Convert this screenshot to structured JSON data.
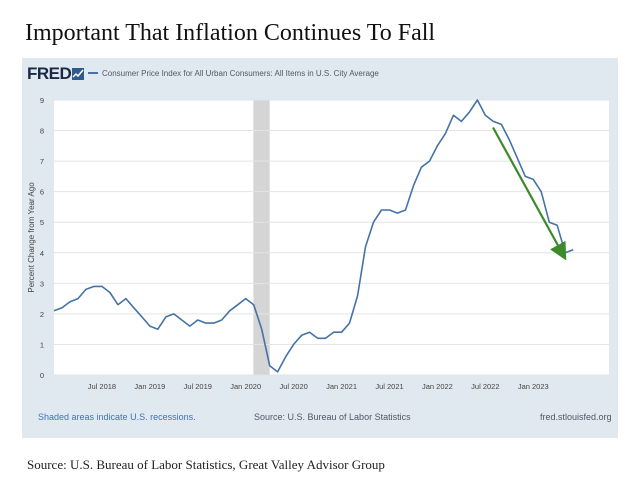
{
  "slide": {
    "title": "Important That Inflation Continues To Fall",
    "source": "Source: U.S. Bureau of Labor Statistics, Great Valley Advisor Group"
  },
  "fred": {
    "logo": "FRED",
    "legend": "Consumer Price Index for All Urban Consumers: All Items in U.S. City Average",
    "shaded_note": "Shaded areas indicate U.S. recessions.",
    "source_note": "Source: U.S. Bureau of Labor Statistics",
    "site": "fred.stlouisfed.org"
  },
  "colors": {
    "line": "#4572a7",
    "panel": "#e1e9f0",
    "recession": "#d5d5d5",
    "arrow": "#3d8a2a"
  },
  "chart_data": {
    "type": "line",
    "title": "Consumer Price Index for All Urban Consumers: All Items in U.S. City Average",
    "xlabel": "",
    "ylabel": "Percent Change from Year Ago",
    "ylim": [
      0,
      9
    ],
    "xlim": [
      2018.0,
      2023.79
    ],
    "yticks": [
      "0",
      "1",
      "2",
      "3",
      "4",
      "5",
      "6",
      "7",
      "8",
      "9"
    ],
    "xticks": [
      {
        "t": 2018.5,
        "label": "Jul 2018"
      },
      {
        "t": 2019.0,
        "label": "Jan 2019"
      },
      {
        "t": 2019.5,
        "label": "Jul 2019"
      },
      {
        "t": 2020.0,
        "label": "Jan 2020"
      },
      {
        "t": 2020.5,
        "label": "Jul 2020"
      },
      {
        "t": 2021.0,
        "label": "Jan 2021"
      },
      {
        "t": 2021.5,
        "label": "Jul 2021"
      },
      {
        "t": 2022.0,
        "label": "Jan 2022"
      },
      {
        "t": 2022.5,
        "label": "Jul 2022"
      },
      {
        "t": 2023.0,
        "label": "Jan 2023"
      }
    ],
    "recessions": [
      {
        "start": 2020.08,
        "end": 2020.25
      }
    ],
    "grid": true,
    "series": [
      {
        "name": "CPI All Items, Percent Change from Year Ago",
        "x": [
          2018.0,
          2018.083,
          2018.167,
          2018.25,
          2018.333,
          2018.417,
          2018.5,
          2018.583,
          2018.667,
          2018.75,
          2018.833,
          2018.917,
          2019.0,
          2019.083,
          2019.167,
          2019.25,
          2019.333,
          2019.417,
          2019.5,
          2019.583,
          2019.667,
          2019.75,
          2019.833,
          2019.917,
          2020.0,
          2020.083,
          2020.167,
          2020.25,
          2020.333,
          2020.417,
          2020.5,
          2020.583,
          2020.667,
          2020.75,
          2020.833,
          2020.917,
          2021.0,
          2021.083,
          2021.167,
          2021.25,
          2021.333,
          2021.417,
          2021.5,
          2021.583,
          2021.667,
          2021.75,
          2021.833,
          2021.917,
          2022.0,
          2022.083,
          2022.167,
          2022.25,
          2022.333,
          2022.417,
          2022.5,
          2022.583,
          2022.667,
          2022.75,
          2022.833,
          2022.917,
          2023.0,
          2023.083,
          2023.167,
          2023.25,
          2023.333,
          2023.417
        ],
        "values": [
          2.1,
          2.2,
          2.4,
          2.5,
          2.8,
          2.9,
          2.9,
          2.7,
          2.3,
          2.5,
          2.2,
          1.9,
          1.6,
          1.5,
          1.9,
          2.0,
          1.8,
          1.6,
          1.8,
          1.7,
          1.7,
          1.8,
          2.1,
          2.3,
          2.5,
          2.3,
          1.5,
          0.3,
          0.1,
          0.6,
          1.0,
          1.3,
          1.4,
          1.2,
          1.2,
          1.4,
          1.4,
          1.7,
          2.6,
          4.2,
          5.0,
          5.4,
          5.4,
          5.3,
          5.4,
          6.2,
          6.8,
          7.0,
          7.5,
          7.9,
          8.5,
          8.3,
          8.6,
          9.0,
          8.5,
          8.3,
          8.2,
          7.7,
          7.1,
          6.5,
          6.4,
          6.0,
          5.0,
          4.9,
          4.0,
          4.1
        ]
      }
    ],
    "annotations": [
      {
        "type": "arrow",
        "from": {
          "t": 2022.58,
          "v": 8.1
        },
        "to": {
          "t": 2023.3,
          "v": 4.0
        }
      }
    ]
  }
}
